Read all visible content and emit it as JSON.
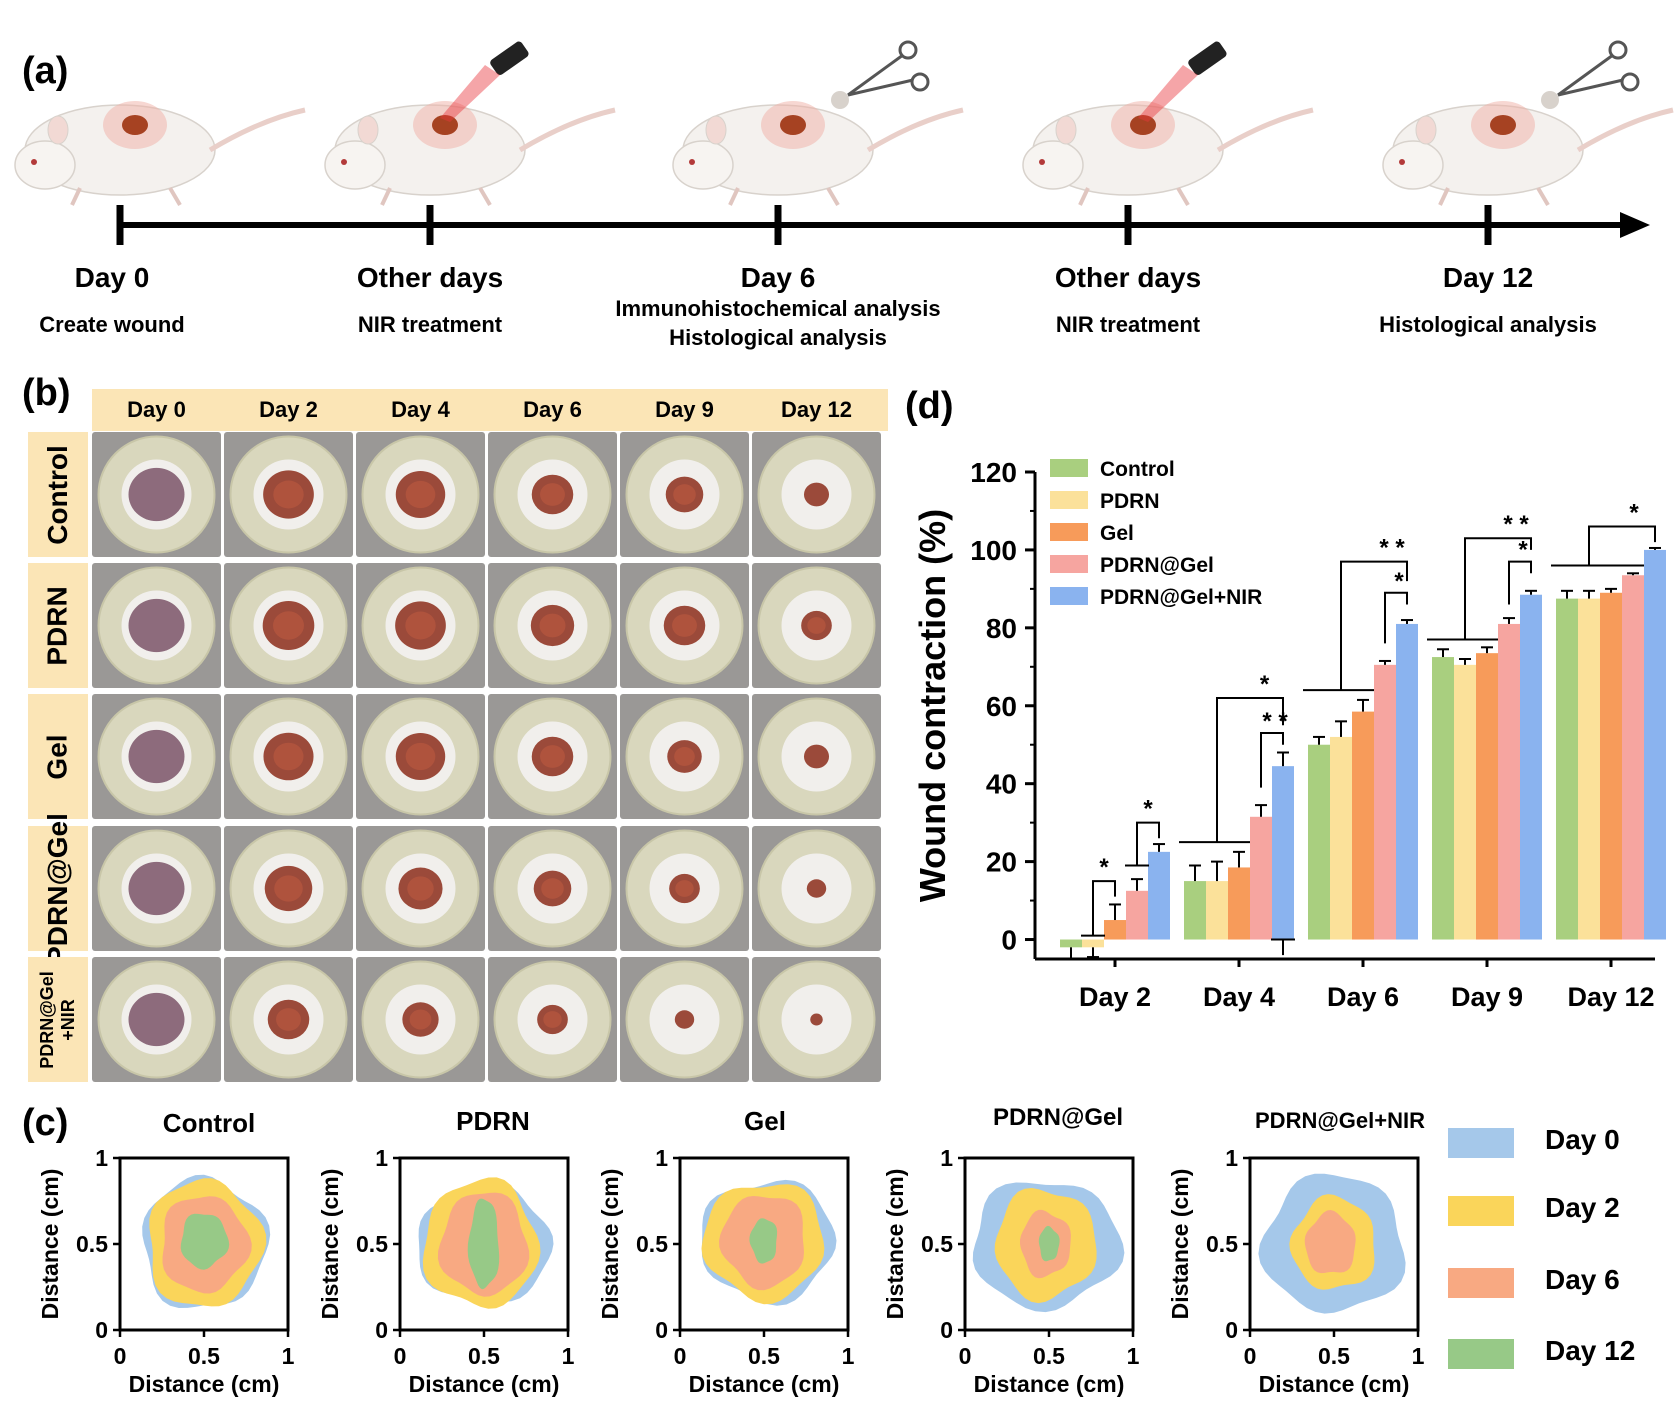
{
  "panels": {
    "a": "(a)",
    "b": "(b)",
    "c": "(c)",
    "d": "(d)"
  },
  "timeline": [
    {
      "day": "Day 0",
      "desc": [
        "Create wound"
      ],
      "tool": "none"
    },
    {
      "day": "Other days",
      "desc": [
        "NIR treatment"
      ],
      "tool": "laser"
    },
    {
      "day": "Day 6",
      "desc": [
        "Immunohistochemical analysis",
        "Histological analysis"
      ],
      "tool": "scissors"
    },
    {
      "day": "Other days",
      "desc": [
        "NIR treatment"
      ],
      "tool": "laser"
    },
    {
      "day": "Day 12",
      "desc": [
        "Histological analysis"
      ],
      "tool": "scissors"
    }
  ],
  "photo_grid": {
    "columns": [
      "Day 0",
      "Day 2",
      "Day 4",
      "Day 6",
      "Day 9",
      "Day 12"
    ],
    "rows": [
      "Control",
      "PDRN",
      "Gel",
      "PDRN@Gel",
      "PDRN@Gel\n+NIR"
    ],
    "wound_fraction": [
      [
        1.0,
        0.82,
        0.78,
        0.55,
        0.45,
        0.2
      ],
      [
        1.0,
        0.85,
        0.82,
        0.6,
        0.55,
        0.3
      ],
      [
        1.0,
        0.8,
        0.78,
        0.55,
        0.38,
        0.2
      ],
      [
        1.0,
        0.72,
        0.62,
        0.45,
        0.3,
        0.12
      ],
      [
        1.0,
        0.55,
        0.42,
        0.3,
        0.12,
        0.05
      ]
    ]
  },
  "colors": {
    "control": "#a9cf7f",
    "pdrn": "#fbe19a",
    "gel": "#f79b5a",
    "pdrn_gel": "#f6a5a0",
    "pdrn_gel_nir": "#8ab3ef",
    "day0": "#a5c8ea",
    "day2": "#fad55a",
    "day6": "#f8a982",
    "day12": "#97c987",
    "highlight": "#fbe5b6"
  },
  "chart_data": [
    {
      "type": "bar",
      "ylabel": "Wound contraction (%)",
      "xlabel": "",
      "ylim": [
        -5,
        120
      ],
      "yticks": [
        0,
        20,
        40,
        60,
        80,
        100,
        120
      ],
      "categories": [
        "Day 2",
        "Day 4",
        "Day 6",
        "Day 9",
        "Day 12"
      ],
      "legend_position": "top-left",
      "series": [
        {
          "name": "Control",
          "values": [
            -2,
            15,
            50,
            72.5,
            87.5
          ],
          "errors": [
            3,
            4,
            2,
            2,
            2
          ]
        },
        {
          "name": "PDRN",
          "values": [
            -2,
            15,
            52,
            70.5,
            87.5
          ],
          "errors": [
            2.5,
            5,
            4,
            1.5,
            2
          ]
        },
        {
          "name": "Gel",
          "values": [
            5,
            18.5,
            58.5,
            73.5,
            89
          ],
          "errors": [
            4,
            4,
            3,
            1.5,
            1
          ]
        },
        {
          "name": "PDRN@Gel",
          "values": [
            12.5,
            31.5,
            70.5,
            81,
            93.5
          ],
          "errors": [
            3,
            3,
            1,
            1.5,
            0.5
          ]
        },
        {
          "name": "PDRN@Gel+NIR",
          "values": [
            22.5,
            44.5,
            81,
            88.5,
            100
          ],
          "errors": [
            2,
            3.5,
            1,
            1,
            0.5
          ]
        }
      ],
      "significance": [
        "*",
        "*",
        "* *",
        "*",
        "* *",
        "*",
        "* *",
        "*",
        "*"
      ]
    },
    {
      "type": "area",
      "description_title": "Control",
      "xlabel": "Distance (cm)",
      "ylabel": "Distance (cm)",
      "xlim": [
        0,
        1
      ],
      "ylim": [
        0,
        1
      ],
      "xticks": [
        "0",
        "0.5",
        "1"
      ],
      "yticks": [
        "0",
        "0.5",
        "1"
      ],
      "series": [
        {
          "name": "Day 0",
          "center": [
            0.5,
            0.5
          ],
          "radius_x": 0.37,
          "radius_y": 0.38
        },
        {
          "name": "Day 2",
          "center": [
            0.5,
            0.5
          ],
          "radius_x": 0.34,
          "radius_y": 0.37
        },
        {
          "name": "Day 6",
          "center": [
            0.5,
            0.5
          ],
          "radius_x": 0.26,
          "radius_y": 0.28
        },
        {
          "name": "Day 12",
          "center": [
            0.5,
            0.52
          ],
          "radius_x": 0.14,
          "radius_y": 0.16
        }
      ]
    },
    {
      "type": "area",
      "description_title": "PDRN",
      "xlabel": "Distance (cm)",
      "ylabel": "Distance (cm)",
      "xlim": [
        0,
        1
      ],
      "ylim": [
        0,
        1
      ],
      "xticks": [
        "0",
        "0.5",
        "1"
      ],
      "yticks": [
        "0",
        "0.5",
        "1"
      ],
      "series": [
        {
          "name": "Day 0",
          "center": [
            0.5,
            0.5
          ],
          "radius_x": 0.4,
          "radius_y": 0.34
        },
        {
          "name": "Day 2",
          "center": [
            0.48,
            0.5
          ],
          "radius_x": 0.34,
          "radius_y": 0.37
        },
        {
          "name": "Day 6",
          "center": [
            0.5,
            0.5
          ],
          "radius_x": 0.26,
          "radius_y": 0.3
        },
        {
          "name": "Day 12",
          "center": [
            0.5,
            0.5
          ],
          "radius_x": 0.09,
          "radius_y": 0.26
        }
      ]
    },
    {
      "type": "area",
      "description_title": "Gel",
      "xlabel": "Distance (cm)",
      "ylabel": "Distance (cm)",
      "xlim": [
        0,
        1
      ],
      "ylim": [
        0,
        1
      ],
      "xticks": [
        "0",
        "0.5",
        "1"
      ],
      "yticks": [
        "0",
        "0.5",
        "1"
      ],
      "series": [
        {
          "name": "Day 0",
          "center": [
            0.52,
            0.52
          ],
          "radius_x": 0.4,
          "radius_y": 0.35
        },
        {
          "name": "Day 2",
          "center": [
            0.5,
            0.52
          ],
          "radius_x": 0.36,
          "radius_y": 0.34
        },
        {
          "name": "Day 6",
          "center": [
            0.5,
            0.52
          ],
          "radius_x": 0.25,
          "radius_y": 0.27
        },
        {
          "name": "Day 12",
          "center": [
            0.5,
            0.52
          ],
          "radius_x": 0.08,
          "radius_y": 0.13
        }
      ]
    },
    {
      "type": "area",
      "description_title": "PDRN@Gel",
      "xlabel": "Distance (cm)",
      "ylabel": "Distance (cm)",
      "xlim": [
        0,
        1
      ],
      "ylim": [
        0,
        1
      ],
      "xticks": [
        "0",
        "0.5",
        "1"
      ],
      "yticks": [
        "0",
        "0.5",
        "1"
      ],
      "series": [
        {
          "name": "Day 0",
          "center": [
            0.48,
            0.5
          ],
          "radius_x": 0.44,
          "radius_y": 0.37
        },
        {
          "name": "Day 2",
          "center": [
            0.48,
            0.5
          ],
          "radius_x": 0.3,
          "radius_y": 0.32
        },
        {
          "name": "Day 6",
          "center": [
            0.48,
            0.5
          ],
          "radius_x": 0.15,
          "radius_y": 0.19
        },
        {
          "name": "Day 12",
          "center": [
            0.5,
            0.5
          ],
          "radius_x": 0.06,
          "radius_y": 0.1
        }
      ]
    },
    {
      "type": "area",
      "description_title": "PDRN@Gel+NIR",
      "xlabel": "Distance (cm)",
      "ylabel": "Distance (cm)",
      "xlim": [
        0,
        1
      ],
      "ylim": [
        0,
        1
      ],
      "xticks": [
        "0",
        "0.5",
        "1"
      ],
      "yticks": [
        "0",
        "0.5",
        "1"
      ],
      "series": [
        {
          "name": "Day 0",
          "center": [
            0.5,
            0.5
          ],
          "radius_x": 0.42,
          "radius_y": 0.4
        },
        {
          "name": "Day 2",
          "center": [
            0.5,
            0.5
          ],
          "radius_x": 0.25,
          "radius_y": 0.27
        },
        {
          "name": "Day 6",
          "center": [
            0.48,
            0.5
          ],
          "radius_x": 0.15,
          "radius_y": 0.18
        }
      ]
    }
  ],
  "c_legend": [
    "Day 0",
    "Day 2",
    "Day 6",
    "Day 12"
  ]
}
